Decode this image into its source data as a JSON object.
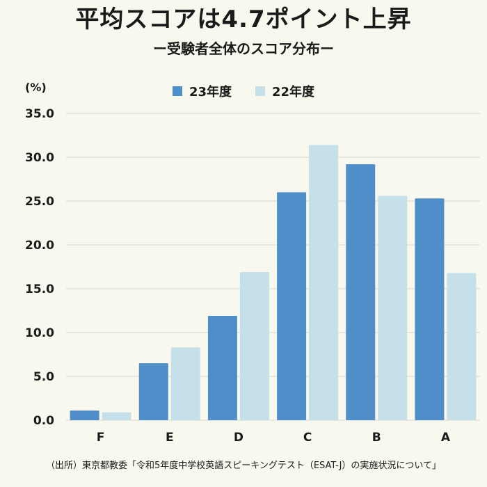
{
  "title": "平均スコアは4.7ポイント上昇",
  "subtitle": "ー受験者全体のスコア分布ー",
  "unit_label": "(%)",
  "source": "（出所）東京都教委「令和5年度中学校英語スピーキングテスト（ESAT-J）の実施状況について」",
  "colors": {
    "series_23": "#4f8ec9",
    "series_22": "#c5e0e8",
    "grid": "#d6d6cf",
    "background": "#f8f8ef"
  },
  "chart_data": {
    "type": "bar",
    "categories": [
      "F",
      "E",
      "D",
      "C",
      "B",
      "A"
    ],
    "series": [
      {
        "name": "23年度",
        "values": [
          1.1,
          6.5,
          11.9,
          26.0,
          29.2,
          25.3
        ]
      },
      {
        "name": "22年度",
        "values": [
          0.9,
          8.3,
          16.9,
          31.4,
          25.6,
          16.8
        ]
      }
    ],
    "ylim": [
      0,
      35
    ],
    "yticks": [
      "0.0",
      "5.0",
      "10.0",
      "15.0",
      "20.0",
      "25.0",
      "30.0",
      "35.0"
    ],
    "ytick_values": [
      0,
      5,
      10,
      15,
      20,
      25,
      30,
      35
    ],
    "grid": true,
    "legend_position": "top-center"
  }
}
